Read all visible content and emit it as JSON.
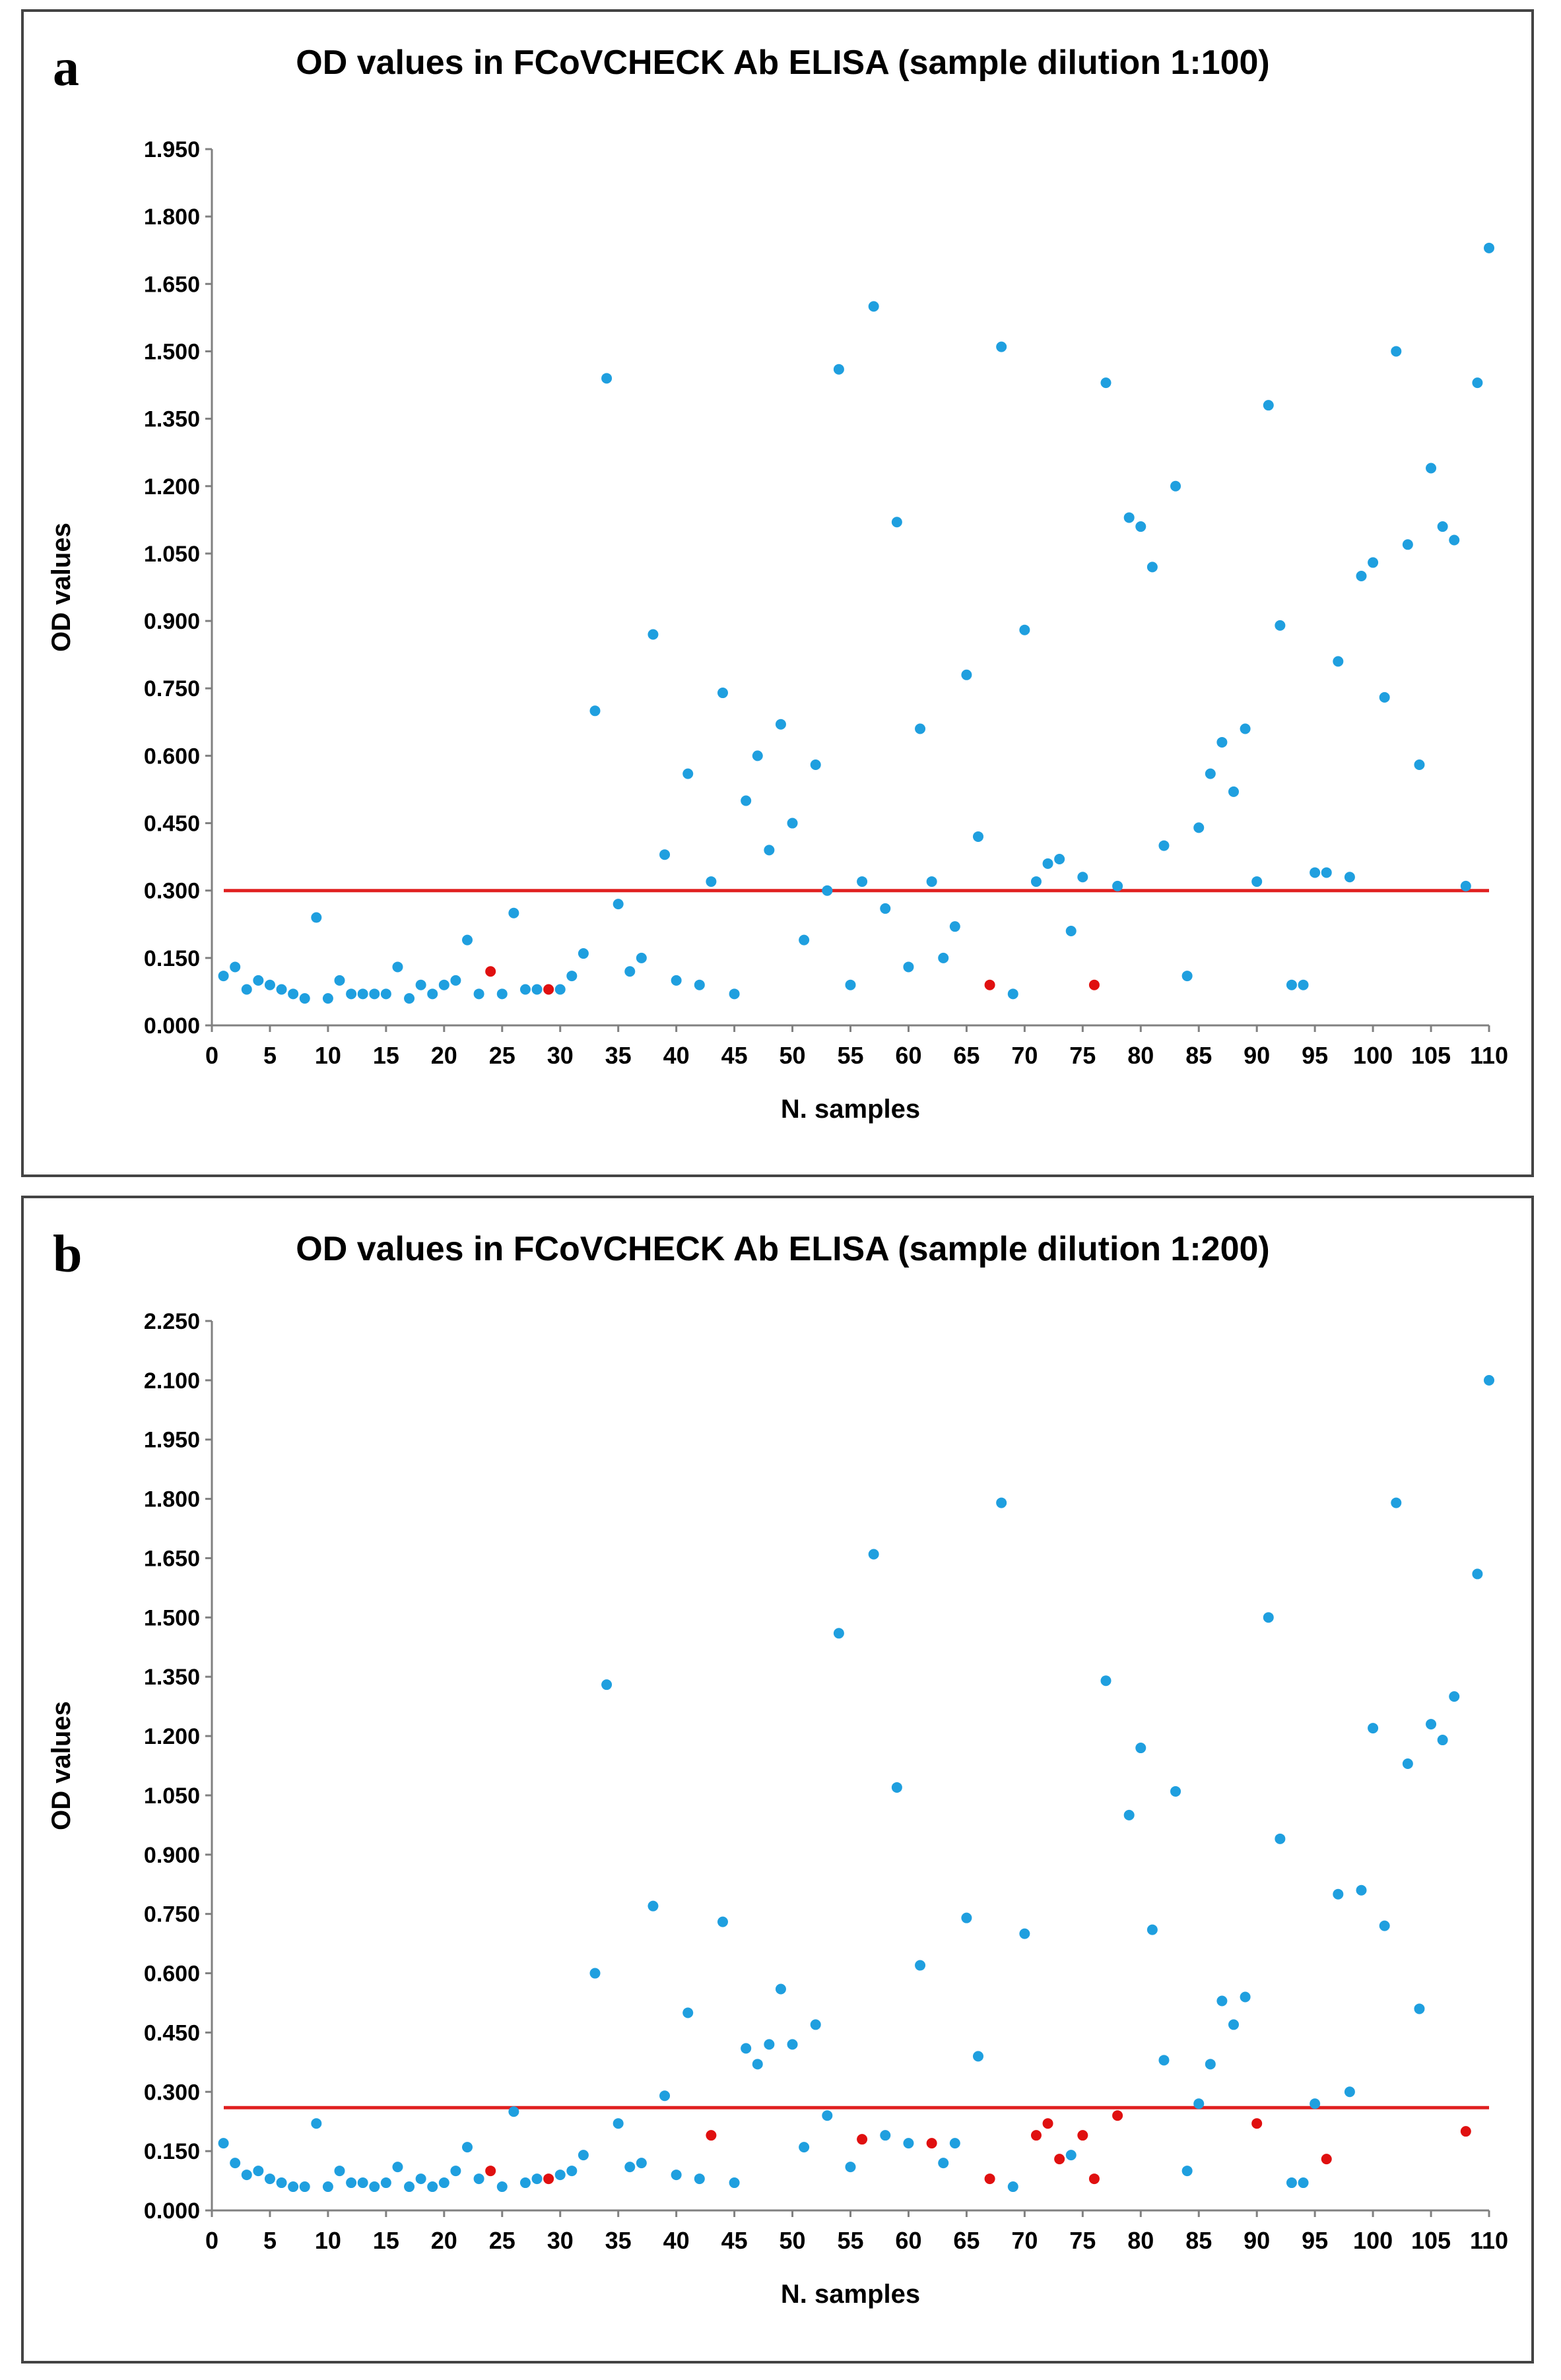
{
  "chart_data": [
    {
      "panel_label": "a",
      "type": "scatter",
      "title": "OD values in FCoVCHECK Ab ELISA (sample dilution 1:100)",
      "xlabel": "N. samples",
      "ylabel": "OD values",
      "xlim": [
        0,
        110
      ],
      "ylim": [
        0,
        1.95
      ],
      "x_ticks": [
        0,
        5,
        10,
        15,
        20,
        25,
        30,
        35,
        40,
        45,
        50,
        55,
        60,
        65,
        70,
        75,
        80,
        85,
        90,
        95,
        100,
        105,
        110
      ],
      "y_ticks": [
        0,
        0.15,
        0.3,
        0.45,
        0.6,
        0.75,
        0.9,
        1.05,
        1.2,
        1.35,
        1.5,
        1.65,
        1.8,
        1.95
      ],
      "y_tick_labels": [
        "0.000",
        "0.150",
        "0.300",
        "0.450",
        "0.600",
        "0.750",
        "0.900",
        "1.050",
        "1.200",
        "1.350",
        "1.500",
        "1.650",
        "1.800",
        "1.950"
      ],
      "cutoff": 0.3,
      "colors": {
        "series": "#1f9fdf",
        "highlight": "#e01010",
        "cutoff": "#e02020"
      },
      "grid": false,
      "series": [
        {
          "color": "#1f9fdf",
          "points": [
            [
              1,
              0.11
            ],
            [
              2,
              0.13
            ],
            [
              3,
              0.08
            ],
            [
              4,
              0.1
            ],
            [
              5,
              0.09
            ],
            [
              6,
              0.08
            ],
            [
              7,
              0.07
            ],
            [
              8,
              0.06
            ],
            [
              9,
              0.24
            ],
            [
              10,
              0.06
            ],
            [
              11,
              0.1
            ],
            [
              12,
              0.07
            ],
            [
              13,
              0.07
            ],
            [
              14,
              0.07
            ],
            [
              15,
              0.07
            ],
            [
              16,
              0.13
            ],
            [
              17,
              0.06
            ],
            [
              18,
              0.09
            ],
            [
              19,
              0.07
            ],
            [
              20,
              0.09
            ],
            [
              21,
              0.1
            ],
            [
              22,
              0.19
            ],
            [
              23,
              0.07
            ],
            [
              25,
              0.07
            ],
            [
              26,
              0.25
            ],
            [
              27,
              0.08
            ],
            [
              28,
              0.08
            ],
            [
              30,
              0.08
            ],
            [
              31,
              0.11
            ],
            [
              32,
              0.16
            ],
            [
              33,
              0.7
            ],
            [
              34,
              1.44
            ],
            [
              35,
              0.27
            ],
            [
              36,
              0.12
            ],
            [
              37,
              0.15
            ],
            [
              38,
              0.87
            ],
            [
              39,
              0.38
            ],
            [
              40,
              0.1
            ],
            [
              41,
              0.56
            ],
            [
              42,
              0.09
            ],
            [
              43,
              0.32
            ],
            [
              44,
              0.74
            ],
            [
              45,
              0.07
            ],
            [
              46,
              0.5
            ],
            [
              47,
              0.6
            ],
            [
              48,
              0.39
            ],
            [
              49,
              0.67
            ],
            [
              50,
              0.45
            ],
            [
              51,
              0.19
            ],
            [
              52,
              0.58
            ],
            [
              53,
              0.3
            ],
            [
              54,
              1.46
            ],
            [
              55,
              0.09
            ],
            [
              56,
              0.32
            ],
            [
              57,
              1.6
            ],
            [
              58,
              0.26
            ],
            [
              59,
              1.12
            ],
            [
              60,
              0.13
            ],
            [
              61,
              0.66
            ],
            [
              62,
              0.32
            ],
            [
              63,
              0.15
            ],
            [
              64,
              0.22
            ],
            [
              65,
              0.78
            ],
            [
              66,
              0.42
            ],
            [
              68,
              1.51
            ],
            [
              69,
              0.07
            ],
            [
              70,
              0.88
            ],
            [
              71,
              0.32
            ],
            [
              72,
              0.36
            ],
            [
              73,
              0.37
            ],
            [
              74,
              0.21
            ],
            [
              75,
              0.33
            ],
            [
              77,
              1.43
            ],
            [
              78,
              0.31
            ],
            [
              79,
              1.13
            ],
            [
              80,
              1.11
            ],
            [
              81,
              1.02
            ],
            [
              82,
              0.4
            ],
            [
              83,
              1.2
            ],
            [
              84,
              0.11
            ],
            [
              85,
              0.44
            ],
            [
              86,
              0.56
            ],
            [
              87,
              0.63
            ],
            [
              88,
              0.52
            ],
            [
              89,
              0.66
            ],
            [
              90,
              0.32
            ],
            [
              91,
              1.38
            ],
            [
              92,
              0.89
            ],
            [
              93,
              0.09
            ],
            [
              94,
              0.09
            ],
            [
              95,
              0.34
            ],
            [
              96,
              0.34
            ],
            [
              97,
              0.81
            ],
            [
              98,
              0.33
            ],
            [
              99,
              1.0
            ],
            [
              100,
              1.03
            ],
            [
              101,
              0.73
            ],
            [
              102,
              1.5
            ],
            [
              103,
              1.07
            ],
            [
              104,
              0.58
            ],
            [
              105,
              1.24
            ],
            [
              106,
              1.11
            ],
            [
              107,
              1.08
            ],
            [
              108,
              0.31
            ],
            [
              109,
              1.43
            ],
            [
              110,
              1.73
            ]
          ]
        },
        {
          "color": "#e01010",
          "points": [
            [
              24,
              0.12
            ],
            [
              29,
              0.08
            ],
            [
              67,
              0.09
            ],
            [
              76,
              0.09
            ]
          ]
        }
      ]
    },
    {
      "panel_label": "b",
      "type": "scatter",
      "title": "OD values in FCoVCHECK Ab ELISA (sample dilution 1:200)",
      "xlabel": "N. samples",
      "ylabel": "OD values",
      "xlim": [
        0,
        110
      ],
      "ylim": [
        0,
        2.25
      ],
      "x_ticks": [
        0,
        5,
        10,
        15,
        20,
        25,
        30,
        35,
        40,
        45,
        50,
        55,
        60,
        65,
        70,
        75,
        80,
        85,
        90,
        95,
        100,
        105,
        110
      ],
      "y_ticks": [
        0,
        0.15,
        0.3,
        0.45,
        0.6,
        0.75,
        0.9,
        1.05,
        1.2,
        1.35,
        1.5,
        1.65,
        1.8,
        1.95,
        2.1,
        2.25
      ],
      "y_tick_labels": [
        "0.000",
        "0.150",
        "0.300",
        "0.450",
        "0.600",
        "0.750",
        "0.900",
        "1.050",
        "1.200",
        "1.350",
        "1.500",
        "1.650",
        "1.800",
        "1.950",
        "2.100",
        "2.250"
      ],
      "cutoff": 0.26,
      "colors": {
        "series": "#1f9fdf",
        "highlight": "#e01010",
        "cutoff": "#e02020"
      },
      "grid": false,
      "series": [
        {
          "color": "#1f9fdf",
          "points": [
            [
              1,
              0.17
            ],
            [
              2,
              0.12
            ],
            [
              3,
              0.09
            ],
            [
              4,
              0.1
            ],
            [
              5,
              0.08
            ],
            [
              6,
              0.07
            ],
            [
              7,
              0.06
            ],
            [
              8,
              0.06
            ],
            [
              9,
              0.22
            ],
            [
              10,
              0.06
            ],
            [
              11,
              0.1
            ],
            [
              12,
              0.07
            ],
            [
              13,
              0.07
            ],
            [
              14,
              0.06
            ],
            [
              15,
              0.07
            ],
            [
              16,
              0.11
            ],
            [
              17,
              0.06
            ],
            [
              18,
              0.08
            ],
            [
              19,
              0.06
            ],
            [
              20,
              0.07
            ],
            [
              21,
              0.1
            ],
            [
              22,
              0.16
            ],
            [
              23,
              0.08
            ],
            [
              25,
              0.06
            ],
            [
              26,
              0.25
            ],
            [
              27,
              0.07
            ],
            [
              28,
              0.08
            ],
            [
              30,
              0.09
            ],
            [
              31,
              0.1
            ],
            [
              32,
              0.14
            ],
            [
              33,
              0.6
            ],
            [
              34,
              1.33
            ],
            [
              35,
              0.22
            ],
            [
              36,
              0.11
            ],
            [
              37,
              0.12
            ],
            [
              38,
              0.77
            ],
            [
              39,
              0.29
            ],
            [
              40,
              0.09
            ],
            [
              41,
              0.5
            ],
            [
              42,
              0.08
            ],
            [
              44,
              0.73
            ],
            [
              45,
              0.07
            ],
            [
              46,
              0.41
            ],
            [
              47,
              0.37
            ],
            [
              48,
              0.42
            ],
            [
              49,
              0.56
            ],
            [
              50,
              0.42
            ],
            [
              51,
              0.16
            ],
            [
              52,
              0.47
            ],
            [
              53,
              0.24
            ],
            [
              54,
              1.46
            ],
            [
              55,
              0.11
            ],
            [
              57,
              1.66
            ],
            [
              58,
              0.19
            ],
            [
              59,
              1.07
            ],
            [
              60,
              0.17
            ],
            [
              61,
              0.62
            ],
            [
              63,
              0.12
            ],
            [
              64,
              0.17
            ],
            [
              65,
              0.74
            ],
            [
              66,
              0.39
            ],
            [
              68,
              1.79
            ],
            [
              69,
              0.06
            ],
            [
              70,
              0.7
            ],
            [
              74,
              0.14
            ],
            [
              77,
              1.34
            ],
            [
              79,
              1.0
            ],
            [
              80,
              1.17
            ],
            [
              81,
              0.71
            ],
            [
              82,
              0.38
            ],
            [
              83,
              1.06
            ],
            [
              84,
              0.1
            ],
            [
              85,
              0.27
            ],
            [
              86,
              0.37
            ],
            [
              87,
              0.53
            ],
            [
              88,
              0.47
            ],
            [
              89,
              0.54
            ],
            [
              91,
              1.5
            ],
            [
              92,
              0.94
            ],
            [
              93,
              0.07
            ],
            [
              94,
              0.07
            ],
            [
              95,
              0.27
            ],
            [
              97,
              0.8
            ],
            [
              98,
              0.3
            ],
            [
              99,
              0.81
            ],
            [
              100,
              1.22
            ],
            [
              101,
              0.72
            ],
            [
              102,
              1.79
            ],
            [
              103,
              1.13
            ],
            [
              104,
              0.51
            ],
            [
              105,
              1.23
            ],
            [
              106,
              1.19
            ],
            [
              107,
              1.3
            ],
            [
              109,
              1.61
            ],
            [
              110,
              2.1
            ]
          ]
        },
        {
          "color": "#e01010",
          "points": [
            [
              24,
              0.1
            ],
            [
              29,
              0.08
            ],
            [
              43,
              0.19
            ],
            [
              56,
              0.18
            ],
            [
              62,
              0.17
            ],
            [
              67,
              0.08
            ],
            [
              71,
              0.19
            ],
            [
              72,
              0.22
            ],
            [
              73,
              0.13
            ],
            [
              75,
              0.19
            ],
            [
              76,
              0.08
            ],
            [
              78,
              0.24
            ],
            [
              90,
              0.22
            ],
            [
              96,
              0.13
            ],
            [
              108,
              0.2
            ]
          ]
        }
      ]
    }
  ]
}
